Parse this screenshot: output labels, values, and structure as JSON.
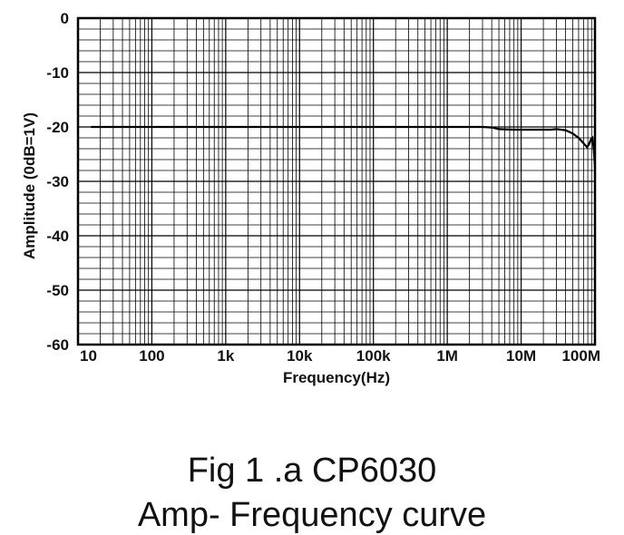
{
  "chart_data": {
    "type": "line",
    "xlabel": "Frequency(Hz)",
    "ylabel": "Amplitude (0dB=1V)",
    "x_scale": "log",
    "xlim": [
      10,
      100000000
    ],
    "ylim": [
      -60,
      0
    ],
    "x_ticks": [
      {
        "value": 10,
        "label": "10"
      },
      {
        "value": 100,
        "label": "100"
      },
      {
        "value": 1000,
        "label": "1k"
      },
      {
        "value": 10000,
        "label": "10k"
      },
      {
        "value": 100000,
        "label": "100k"
      },
      {
        "value": 1000000,
        "label": "1M"
      },
      {
        "value": 10000000,
        "label": "10M"
      },
      {
        "value": 100000000,
        "label": "100M"
      }
    ],
    "y_ticks": [
      {
        "value": 0,
        "label": "0"
      },
      {
        "value": -10,
        "label": "-10"
      },
      {
        "value": -20,
        "label": "-20"
      },
      {
        "value": -30,
        "label": "-30"
      },
      {
        "value": -40,
        "label": "-40"
      },
      {
        "value": -50,
        "label": "-50"
      },
      {
        "value": -60,
        "label": "-60"
      }
    ],
    "grid": true,
    "series": [
      {
        "color": "#000000",
        "points": [
          [
            15,
            -20.0
          ],
          [
            100,
            -20.0
          ],
          [
            1000,
            -20.0
          ],
          [
            10000,
            -20.0
          ],
          [
            100000,
            -20.0
          ],
          [
            1000000,
            -20.0
          ],
          [
            3000000,
            -20.0
          ],
          [
            4000000,
            -20.1
          ],
          [
            5000000,
            -20.4
          ],
          [
            8000000,
            -20.5
          ],
          [
            15000000,
            -20.5
          ],
          [
            25000000,
            -20.5
          ],
          [
            30000000,
            -20.4
          ],
          [
            40000000,
            -20.6
          ],
          [
            50000000,
            -21.2
          ],
          [
            60000000,
            -22.0
          ],
          [
            70000000,
            -23.0
          ],
          [
            78000000,
            -23.7
          ],
          [
            83000000,
            -23.2
          ],
          [
            88000000,
            -22.3
          ],
          [
            92000000,
            -22.0
          ],
          [
            96000000,
            -24.0
          ],
          [
            100000000,
            -27.5
          ]
        ]
      }
    ]
  },
  "caption": {
    "line1": "Fig 1 .a CP6030",
    "line2": "Amp- Frequency curve"
  }
}
